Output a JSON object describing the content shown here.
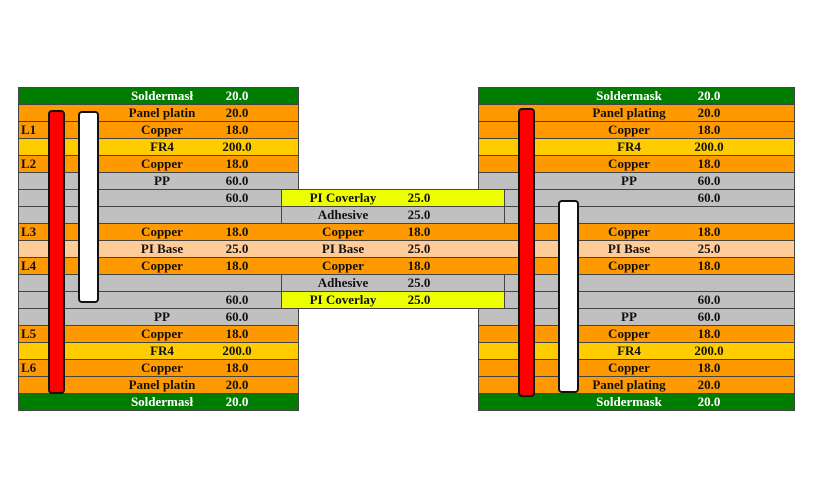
{
  "colors": {
    "soldermask": "#007d00",
    "copper": "#ff9900",
    "fr4": "#ffcc00",
    "pp": "#c0c0c0",
    "adhesive": "#c0c0c0",
    "pi_base": "#ffcc99",
    "pi_coverlay": "#eeff00",
    "via_plated": "#ff0000",
    "via_blind": "#ffffff"
  },
  "left_stack": {
    "rows": [
      {
        "layer": "",
        "material": "Soldermask",
        "display": "Soldermasł",
        "thickness": "20.0",
        "type": "soldermask"
      },
      {
        "layer": "",
        "material": "Panel platin",
        "thickness": "20.0",
        "type": "copper"
      },
      {
        "layer": "L1",
        "material": "Copper",
        "thickness": "18.0",
        "type": "copper"
      },
      {
        "layer": "",
        "material": "FR4",
        "thickness": "200.0",
        "type": "fr4"
      },
      {
        "layer": "L2",
        "material": "Copper",
        "thickness": "18.0",
        "type": "copper"
      },
      {
        "layer": "",
        "material": "PP",
        "thickness": "60.0",
        "type": "pp"
      },
      {
        "layer": "",
        "material": "",
        "thickness": "60.0",
        "type": "pp"
      },
      {
        "layer": "",
        "material": "",
        "thickness": "",
        "type": "pp"
      },
      {
        "layer": "L3",
        "material": "Copper",
        "thickness": "18.0",
        "type": "copper"
      },
      {
        "layer": "",
        "material": "PI Base",
        "thickness": "25.0",
        "type": "pi_base"
      },
      {
        "layer": "L4",
        "material": "Copper",
        "thickness": "18.0",
        "type": "copper"
      },
      {
        "layer": "",
        "material": "",
        "thickness": "",
        "type": "pp"
      },
      {
        "layer": "",
        "material": "",
        "thickness": "60.0",
        "type": "pp"
      },
      {
        "layer": "",
        "material": "PP",
        "thickness": "60.0",
        "type": "pp"
      },
      {
        "layer": "L5",
        "material": "Copper",
        "thickness": "18.0",
        "type": "copper"
      },
      {
        "layer": "",
        "material": "FR4",
        "thickness": "200.0",
        "type": "fr4"
      },
      {
        "layer": "L6",
        "material": "Copper",
        "thickness": "18.0",
        "type": "copper"
      },
      {
        "layer": "",
        "material": "Panel platin",
        "thickness": "20.0",
        "type": "copper"
      },
      {
        "layer": "",
        "material": "Soldermasł",
        "thickness": "20.0",
        "type": "soldermask"
      }
    ]
  },
  "flex_stack": {
    "rows": [
      {
        "material": "PI Coverlay",
        "thickness": "25.0",
        "type": "pi_coverlay"
      },
      {
        "material": "Adhesive",
        "thickness": "25.0",
        "type": "adhesive"
      },
      {
        "material": "Copper",
        "thickness": "18.0",
        "type": "copper"
      },
      {
        "material": "PI Base",
        "thickness": "25.0",
        "type": "pi_base"
      },
      {
        "material": "Copper",
        "thickness": "18.0",
        "type": "copper"
      },
      {
        "material": "Adhesive",
        "thickness": "25.0",
        "type": "adhesive"
      },
      {
        "material": "PI Coverlay",
        "thickness": "25.0",
        "type": "pi_coverlay"
      }
    ]
  },
  "right_stack": {
    "rows": [
      {
        "material": "Soldermask",
        "thickness": "20.0",
        "type": "soldermask"
      },
      {
        "material": "Panel plating",
        "thickness": "20.0",
        "type": "copper"
      },
      {
        "material": "Copper",
        "thickness": "18.0",
        "type": "copper"
      },
      {
        "material": "FR4",
        "thickness": "200.0",
        "type": "fr4"
      },
      {
        "material": "Copper",
        "thickness": "18.0",
        "type": "copper"
      },
      {
        "material": "PP",
        "thickness": "60.0",
        "type": "pp"
      },
      {
        "material": "",
        "thickness": "60.0",
        "type": "pp"
      },
      {
        "material": "",
        "thickness": "",
        "type": "pp"
      },
      {
        "material": "Copper",
        "thickness": "18.0",
        "type": "copper"
      },
      {
        "material": "PI Base",
        "thickness": "25.0",
        "type": "pi_base"
      },
      {
        "material": "Copper",
        "thickness": "18.0",
        "type": "copper"
      },
      {
        "material": "",
        "thickness": "",
        "type": "pp"
      },
      {
        "material": "",
        "thickness": "60.0",
        "type": "pp"
      },
      {
        "material": "PP",
        "thickness": "60.0",
        "type": "pp"
      },
      {
        "material": "Copper",
        "thickness": "18.0",
        "type": "copper"
      },
      {
        "material": "FR4",
        "thickness": "200.0",
        "type": "fr4"
      },
      {
        "material": "Copper",
        "thickness": "18.0",
        "type": "copper"
      },
      {
        "material": "Panel plating",
        "thickness": "20.0",
        "type": "copper"
      },
      {
        "material": "Soldermask",
        "thickness": "20.0",
        "type": "soldermask"
      }
    ]
  }
}
